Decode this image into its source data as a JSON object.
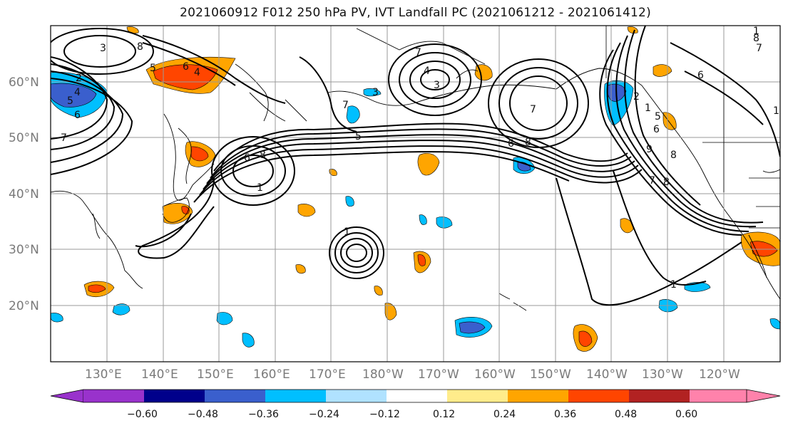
{
  "title": "2021060912 F012 250 hPa PV, IVT Landfall PC (2021061212 - 2021061412)",
  "map": {
    "lat_labels": [
      "60°N",
      "50°N",
      "40°N",
      "30°N",
      "20°N"
    ],
    "lon_labels": [
      "130°E",
      "140°E",
      "150°E",
      "160°E",
      "170°E",
      "180°W",
      "170°W",
      "160°W",
      "150°W",
      "140°W",
      "130°W",
      "120°W"
    ],
    "contour_labels": [
      "3",
      "5",
      "6",
      "4",
      "2",
      "4",
      "5",
      "6",
      "7",
      "8",
      "7",
      "3",
      "4",
      "3",
      "7",
      "6",
      "8",
      "1",
      "5",
      "6",
      "7",
      "8",
      "1",
      "1",
      "1",
      "2",
      "5",
      "6",
      "8",
      "9",
      "7",
      "8",
      "1",
      "1",
      "6",
      "7",
      "8"
    ]
  },
  "colorbar": {
    "levels": [
      "−0.60",
      "−0.48",
      "−0.36",
      "−0.24",
      "−0.12",
      "0.12",
      "0.24",
      "0.36",
      "0.48",
      "0.60"
    ],
    "colors": [
      "#9932cc",
      "#00008b",
      "#3a5fcd",
      "#00bfff",
      "#b0e2ff",
      "#ffffff",
      "#ffec8b",
      "#ffa500",
      "#ff4500",
      "#b22222",
      "#ff82ab"
    ]
  }
}
